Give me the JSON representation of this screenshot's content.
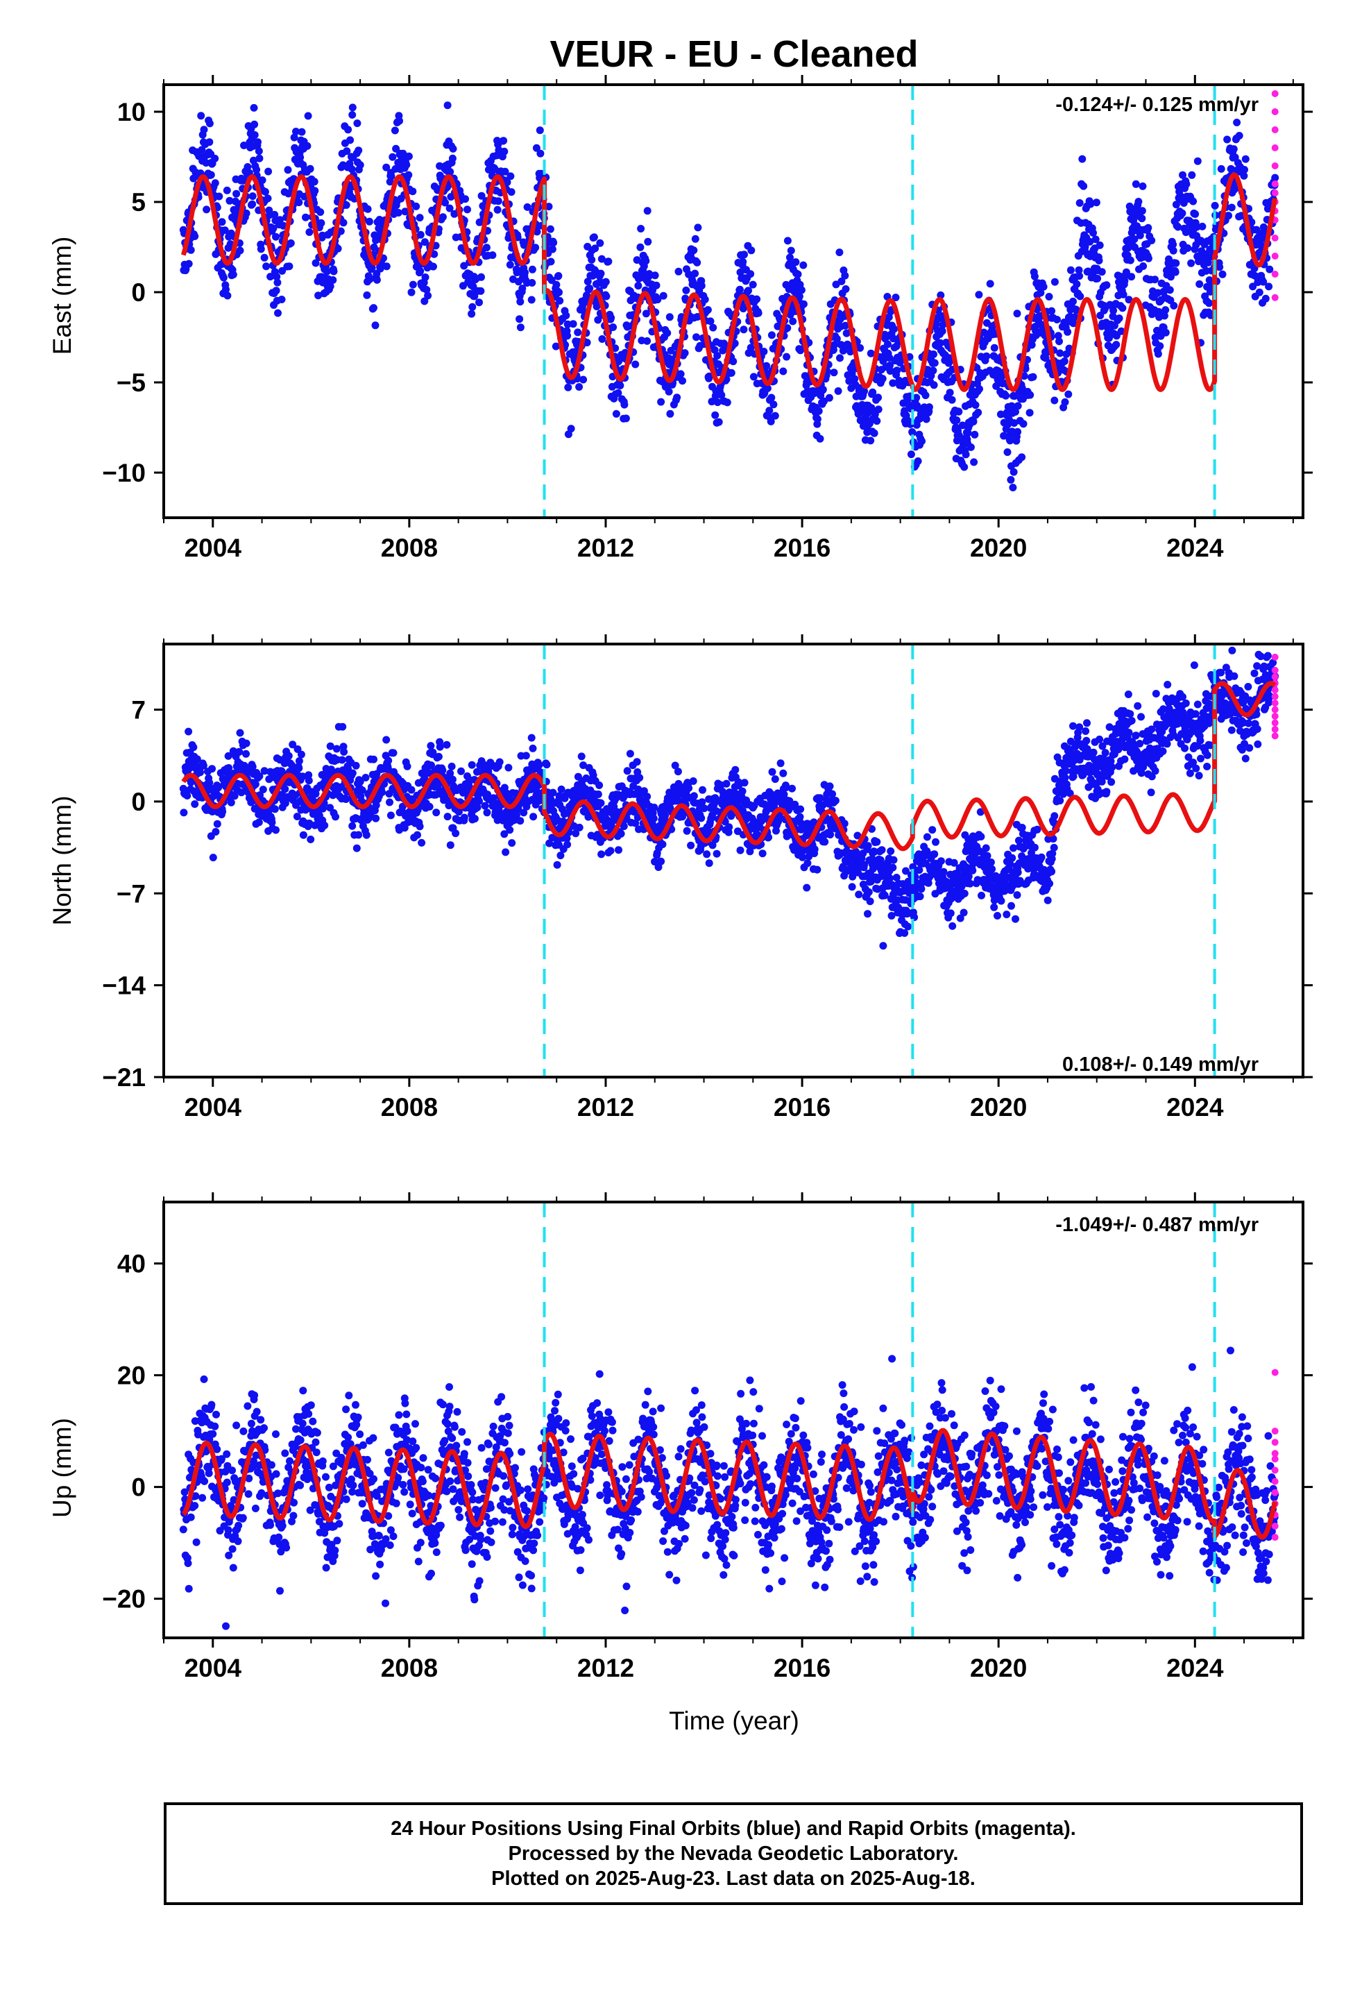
{
  "title": "VEUR  - EU - Cleaned",
  "xlabel": "Time (year)",
  "footer": {
    "line1": "24 Hour Positions Using Final Orbits (blue) and Rapid Orbits (magenta).",
    "line2": "Processed by the Nevada Geodetic Laboratory.",
    "line3": "Plotted on 2025-Aug-23. Last data on 2025-Aug-18."
  },
  "colors": {
    "final_orbits": "#1010f0",
    "rapid_orbits": "#ff20e0",
    "model_fit": "#e81010",
    "breaks": "#22e0f0"
  },
  "chart_data": [
    {
      "type": "scatter",
      "id": "east",
      "ylabel": "East (mm)",
      "rate_text": "-0.124+/- 0.125 mm/yr",
      "rate_position": "top-right",
      "xlim": [
        2003.0,
        2026.2
      ],
      "ylim": [
        -12.5,
        11.5
      ],
      "yticks": [
        -10,
        -5,
        0,
        5,
        10
      ],
      "xticks": [
        2004,
        2008,
        2012,
        2016,
        2020,
        2024
      ],
      "xtick_labels": [
        "2004",
        "2008",
        "2012",
        "2016",
        "2020",
        "2024"
      ],
      "breaks": [
        2010.75,
        2018.25,
        2024.4
      ],
      "series": [
        {
          "role": "model_fit",
          "color": "#e81010",
          "segments": [
            {
              "t0": 2003.4,
              "t1": 2010.75,
              "offset": 4.0,
              "rate": 0.0,
              "amp": 2.4,
              "phase": 0.55
            },
            {
              "t0": 2010.75,
              "t1": 2018.25,
              "offset": -2.3,
              "rate": -0.08,
              "amp": 2.4,
              "phase": 0.55
            },
            {
              "t0": 2018.25,
              "t1": 2024.4,
              "offset": -2.9,
              "rate": 0.0,
              "amp": 2.5,
              "phase": 0.55
            },
            {
              "t0": 2024.4,
              "t1": 2025.63,
              "offset": 4.0,
              "rate": 0.0,
              "amp": 2.5,
              "phase": 0.55
            }
          ]
        },
        {
          "role": "daily_final",
          "color": "#1010f0",
          "trend_knots": [
            [
              2003.4,
              4.5
            ],
            [
              2010.7,
              4.0
            ],
            [
              2010.8,
              -1.0
            ],
            [
              2013.0,
              -2.0
            ],
            [
              2016.0,
              -3.0
            ],
            [
              2017.5,
              -4.5
            ],
            [
              2019.5,
              -5.5
            ],
            [
              2020.8,
              -4.0
            ],
            [
              2021.5,
              0.0
            ],
            [
              2022.5,
              0.5
            ],
            [
              2024.0,
              2.5
            ],
            [
              2024.4,
              4.0
            ],
            [
              2025.63,
              4.0
            ]
          ],
          "amp": 2.8,
          "phase": 0.55,
          "noise": 1.3,
          "t_start": 2003.4,
          "t_end": 2025.63
        },
        {
          "role": "daily_rapid",
          "color": "#ff20e0",
          "t_start": 2025.63,
          "t_end": 2025.64,
          "values": [
            11.0,
            10.0,
            9.0,
            8.0,
            7.0,
            6.0,
            5.5,
            5.0,
            4.5,
            4.0,
            3.0,
            2.0,
            1.0,
            -0.3
          ]
        }
      ]
    },
    {
      "type": "scatter",
      "id": "north",
      "ylabel": "North (mm)",
      "rate_text": "0.108+/- 0.149 mm/yr",
      "rate_position": "bottom-right",
      "xlim": [
        2003.0,
        2026.2
      ],
      "ylim": [
        -21,
        12
      ],
      "yticks": [
        -21,
        -14,
        -7,
        0,
        7
      ],
      "xticks": [
        2004,
        2008,
        2012,
        2016,
        2020,
        2024
      ],
      "xtick_labels": [
        "2004",
        "2008",
        "2012",
        "2016",
        "2020",
        "2024"
      ],
      "breaks": [
        2010.75,
        2018.25,
        2024.4
      ],
      "series": [
        {
          "role": "model_fit",
          "color": "#e81010",
          "segments": [
            {
              "t0": 2003.4,
              "t1": 2010.75,
              "offset": 0.8,
              "rate": 0.0,
              "amp": 1.2,
              "phase": 0.3
            },
            {
              "t0": 2010.75,
              "t1": 2018.25,
              "offset": -1.2,
              "rate": -0.15,
              "amp": 1.3,
              "phase": 0.3
            },
            {
              "t0": 2018.25,
              "t1": 2024.4,
              "offset": -1.4,
              "rate": 0.1,
              "amp": 1.4,
              "phase": 0.3
            },
            {
              "t0": 2024.4,
              "t1": 2025.63,
              "offset": 7.8,
              "rate": 0.0,
              "amp": 1.2,
              "phase": 0.3
            }
          ]
        },
        {
          "role": "daily_final",
          "color": "#1010f0",
          "trend_knots": [
            [
              2003.4,
              1.0
            ],
            [
              2010.7,
              0.5
            ],
            [
              2010.8,
              -0.5
            ],
            [
              2015.5,
              -1.0
            ],
            [
              2017.0,
              -3.0
            ],
            [
              2017.5,
              -6.5
            ],
            [
              2019.0,
              -6.0
            ],
            [
              2021.0,
              -5.0
            ],
            [
              2021.2,
              2.0
            ],
            [
              2023.0,
              4.5
            ],
            [
              2024.4,
              7.0
            ],
            [
              2025.63,
              8.0
            ]
          ],
          "amp": 1.3,
          "phase": 0.3,
          "noise": 1.2,
          "t_start": 2003.4,
          "t_end": 2025.63
        },
        {
          "role": "daily_rapid",
          "color": "#ff20e0",
          "t_start": 2025.63,
          "t_end": 2025.64,
          "values": [
            11.0,
            10.0,
            9.5,
            9.0,
            8.5,
            8.0,
            7.5,
            7.0,
            6.5,
            6.0,
            5.5,
            5.0
          ]
        }
      ]
    },
    {
      "type": "scatter",
      "id": "up",
      "ylabel": "Up (mm)",
      "rate_text": "-1.049+/- 0.487 mm/yr",
      "rate_position": "top-right",
      "xlim": [
        2003.0,
        2026.2
      ],
      "ylim": [
        -27,
        51
      ],
      "yticks": [
        -20,
        0,
        20,
        40
      ],
      "xticks": [
        2004,
        2008,
        2012,
        2016,
        2020,
        2024
      ],
      "xtick_labels": [
        "2004",
        "2008",
        "2012",
        "2016",
        "2020",
        "2024"
      ],
      "breaks": [
        2010.75,
        2018.25,
        2024.4
      ],
      "series": [
        {
          "role": "model_fit",
          "color": "#e81010",
          "segments": [
            {
              "t0": 2003.4,
              "t1": 2010.75,
              "offset": 1.5,
              "rate": -0.3,
              "amp": 6.5,
              "phase": 0.62
            },
            {
              "t0": 2010.75,
              "t1": 2018.25,
              "offset": 3.0,
              "rate": -0.35,
              "amp": 6.5,
              "phase": 0.62
            },
            {
              "t0": 2018.25,
              "t1": 2024.4,
              "offset": 4.0,
              "rate": -0.6,
              "amp": 6.5,
              "phase": 0.62
            },
            {
              "t0": 2024.4,
              "t1": 2025.63,
              "offset": -3.0,
              "rate": 0.0,
              "amp": 6.0,
              "phase": 0.62
            }
          ]
        },
        {
          "role": "daily_final",
          "color": "#1010f0",
          "trend_knots": [
            [
              2003.4,
              2.0
            ],
            [
              2010.7,
              -2.0
            ],
            [
              2010.8,
              2.0
            ],
            [
              2018.2,
              -1.0
            ],
            [
              2018.3,
              3.0
            ],
            [
              2024.4,
              -2.0
            ],
            [
              2025.63,
              -2.0
            ]
          ],
          "amp": 7.0,
          "phase": 0.62,
          "noise": 5.0,
          "t_start": 2003.4,
          "t_end": 2025.63
        },
        {
          "role": "daily_rapid",
          "color": "#ff20e0",
          "t_start": 2025.63,
          "t_end": 2025.64,
          "values": [
            20.5,
            10.0,
            8.0,
            6.0,
            5.0,
            3.0,
            1.0,
            -1.0,
            -3.0,
            -5.0,
            -7.0,
            -9.0
          ]
        }
      ]
    }
  ]
}
